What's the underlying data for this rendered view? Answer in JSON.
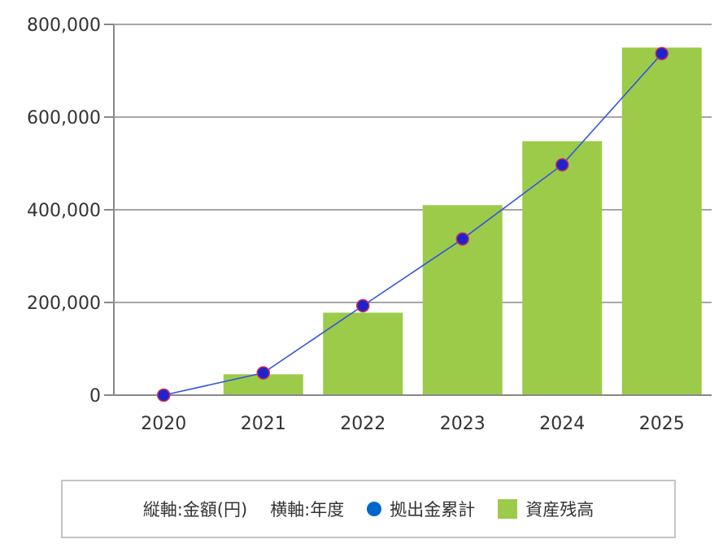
{
  "chart_data": {
    "type": "bar",
    "categories": [
      "2020",
      "2021",
      "2022",
      "2023",
      "2024",
      "2025"
    ],
    "series": [
      {
        "name": "資産残高",
        "type": "bar",
        "color": "#9ccb4a",
        "values": [
          0,
          45000,
          178000,
          410000,
          548000,
          750000
        ]
      },
      {
        "name": "拠出金累計",
        "type": "line",
        "color": "#3355dd",
        "marker_color": "#2222cc",
        "values": [
          0,
          48000,
          193000,
          337000,
          497000,
          737000
        ]
      }
    ],
    "ylim": [
      0,
      800000
    ],
    "yticks": [
      "0",
      "200,000",
      "400,000",
      "600,000",
      "800,000"
    ],
    "grid": true,
    "legend_position": "bottom"
  },
  "legend": {
    "y_axis_note": "縦軸:金額(円)",
    "x_axis_note": "横軸:年度",
    "series_line_label": "拠出金累計",
    "series_bar_label": "資産残高"
  }
}
